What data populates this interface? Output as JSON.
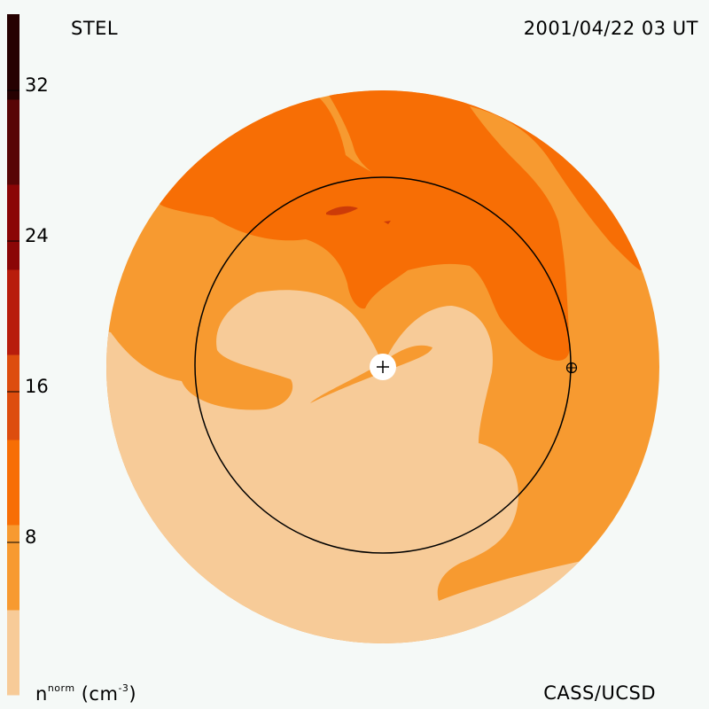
{
  "header": {
    "source": "STEL",
    "timestamp": "2001/04/22 03 UT"
  },
  "footer": {
    "credit": "CASS/UCSD",
    "units_base": "n",
    "units_sup": "norm",
    "units_suffix": " (cm",
    "units_exp": "-3",
    "units_close": ")"
  },
  "colorbar": {
    "ticks": [
      "8",
      "16",
      "24",
      "32"
    ],
    "bands": [
      "#f7cb98",
      "#f79a30",
      "#f76e05",
      "#dd4d0e",
      "#b81d0c",
      "#8b0606",
      "#580505",
      "#260101"
    ]
  },
  "map_colors": {
    "lightest": "#f7cb98",
    "light": "#f79a30",
    "medium": "#f76e05",
    "dark": "#cc3b08"
  }
}
